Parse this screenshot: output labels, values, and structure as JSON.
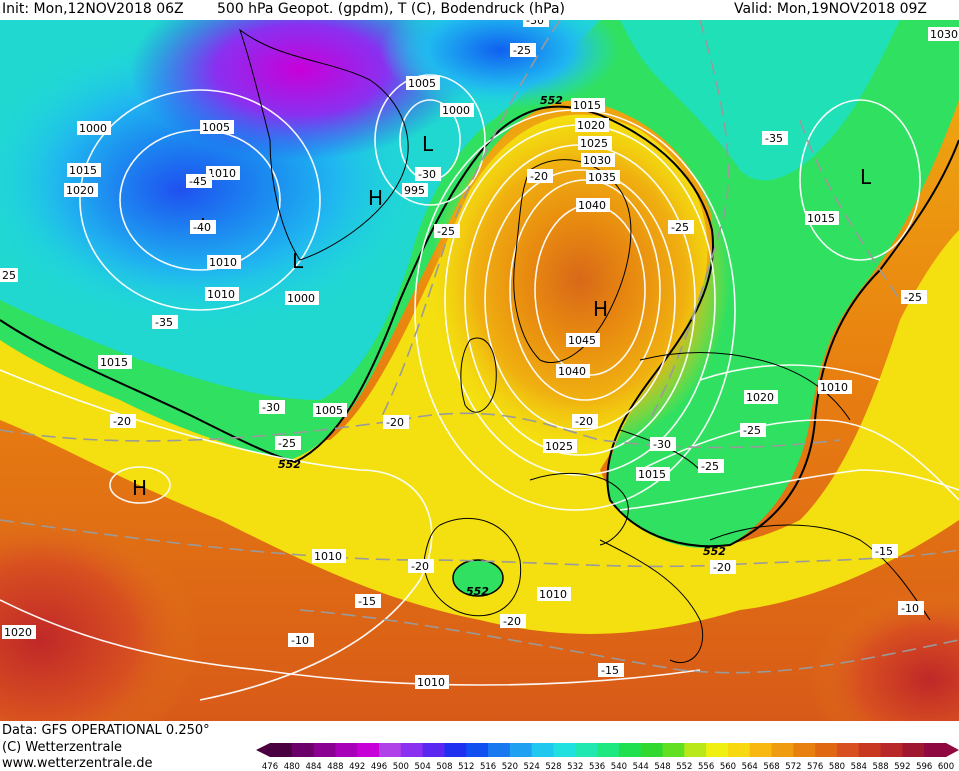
{
  "header": {
    "init": "Init: Mon,12NOV2018 06Z",
    "field": "500 hPa Geopot. (gpdm), T (C), Bodendruck (hPa)",
    "valid": "Valid: Mon,19NOV2018 09Z"
  },
  "footer": {
    "data_line": "Data: GFS OPERATIONAL 0.250°",
    "copyright": "(C) Wetterzentrale",
    "website": "www.wetterzentrale.de"
  },
  "colorbar": {
    "ticks": [
      "476",
      "480",
      "484",
      "488",
      "492",
      "496",
      "500",
      "504",
      "508",
      "512",
      "516",
      "520",
      "524",
      "528",
      "532",
      "536",
      "540",
      "544",
      "548",
      "552",
      "556",
      "560",
      "564",
      "568",
      "572",
      "576",
      "580",
      "584",
      "588",
      "592",
      "596",
      "600"
    ],
    "colors": [
      "#4a0040",
      "#6a0068",
      "#8a0090",
      "#a800b8",
      "#c800d8",
      "#b040e8",
      "#8a30f0",
      "#5a28f0",
      "#2030f0",
      "#1050f0",
      "#1878f0",
      "#20a0f0",
      "#20c8f0",
      "#20e0e0",
      "#20e8b0",
      "#20e880",
      "#20e050",
      "#30d830",
      "#60e020",
      "#b8e818",
      "#f0f010",
      "#f8d810",
      "#f8b810",
      "#f09c10",
      "#e88010",
      "#e06810",
      "#d85020",
      "#c83820",
      "#b82828",
      "#a01830",
      "#900840"
    ]
  },
  "map_labels": {
    "isobars": [
      "1000",
      "1005",
      "1010",
      "1015",
      "1020",
      "1025",
      "1030",
      "1035",
      "1040",
      "1045",
      "995",
      "1010",
      "1005",
      "1000",
      "1010",
      "1010",
      "1010",
      "1000",
      "1015",
      "1005",
      "1015",
      "1020",
      "1025",
      "1030",
      "1035",
      "1040",
      "1045",
      "1040",
      "1025",
      "1015",
      "1020",
      "1010",
      "1010",
      "1010",
      "1010",
      "1020",
      "1030",
      "1015",
      "1010",
      "1020",
      "1015",
      "25",
      "1005",
      "1000",
      "1025"
    ],
    "temperatures": [
      "-30",
      "-25",
      "-45",
      "-40",
      "-35",
      "-30",
      "-25",
      "-20",
      "-25",
      "-25",
      "-35",
      "-20",
      "-30",
      "-25",
      "-20",
      "-20",
      "-25",
      "-30",
      "-25",
      "-25",
      "-20",
      "-15",
      "-15",
      "-10",
      "-20",
      "-20",
      "-15",
      "-10",
      "-15",
      "-10",
      "-25",
      "-20",
      "-35"
    ],
    "geopotential": [
      "552",
      "552",
      "552",
      "552"
    ],
    "pressure_centers": [
      "H",
      "H",
      "H",
      "L",
      "L",
      "L",
      "L",
      "L",
      "H"
    ]
  }
}
